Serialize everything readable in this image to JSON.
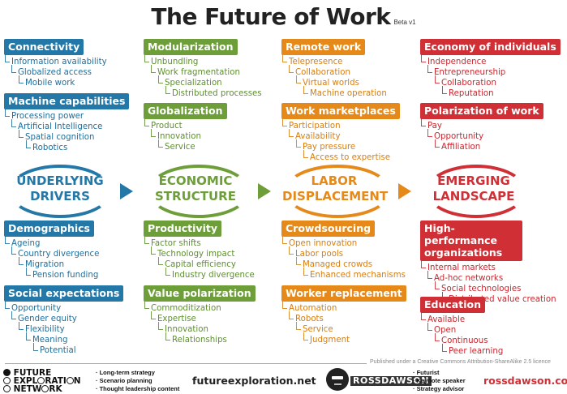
{
  "title": "The Future of Work",
  "version": "Beta v1",
  "colors": {
    "blue": "#2378a8",
    "green": "#6d9e3a",
    "orange": "#e58a1a",
    "red": "#cf2f35"
  },
  "columns": [
    {
      "category": [
        "UNDERLYING",
        "DRIVERS"
      ],
      "top": [
        {
          "header": "Connectivity",
          "items": [
            "Information availability",
            "Globalized access",
            "Mobile work"
          ]
        },
        {
          "header": "Machine capabilities",
          "items": [
            "Processing power",
            "Artificial Intelligence",
            "Spatial cognition",
            "Robotics"
          ]
        }
      ],
      "bottom": [
        {
          "header": "Demographics",
          "items": [
            "Ageing",
            "Country divergence",
            "Migration",
            "Pension funding"
          ]
        },
        {
          "header": "Social expectations",
          "items": [
            "Opportunity",
            "Gender equity",
            "Flexibility",
            "Meaning",
            "Potential"
          ]
        }
      ]
    },
    {
      "category": [
        "ECONOMIC",
        "STRUCTURE"
      ],
      "top": [
        {
          "header": "Modularization",
          "items": [
            "Unbundling",
            "Work fragmentation",
            "Specialization",
            "Distributed processes"
          ]
        },
        {
          "header": "Globalization",
          "items": [
            "Product",
            "Innovation",
            "Service"
          ]
        }
      ],
      "bottom": [
        {
          "header": "Productivity",
          "items": [
            "Factor shifts",
            "Technology impact",
            "Capital efficiency",
            "Industry divergence"
          ]
        },
        {
          "header": "Value polarization",
          "items": [
            "Commoditization",
            "Expertise",
            "Innovation",
            "Relationships"
          ]
        }
      ]
    },
    {
      "category": [
        "LABOR",
        "DISPLACEMENT"
      ],
      "top": [
        {
          "header": "Remote work",
          "items": [
            "Telepresence",
            "Collaboration",
            "Virtual worlds",
            "Machine operation"
          ]
        },
        {
          "header": "Work marketplaces",
          "items": [
            "Participation",
            "Availability",
            "Pay pressure",
            "Access to expertise"
          ]
        }
      ],
      "bottom": [
        {
          "header": "Crowdsourcing",
          "items": [
            "Open innovation",
            "Labor pools",
            "Managed crowds",
            "Enhanced mechanisms"
          ]
        },
        {
          "header": "Worker replacement",
          "items": [
            "Automation",
            "Robots",
            "Service",
            "Judgment"
          ]
        }
      ]
    },
    {
      "category": [
        "EMERGING",
        "LANDSCAPE"
      ],
      "top": [
        {
          "header": "Economy of individuals",
          "items": [
            "Independence",
            "Entrepreneurship",
            "Collaboration",
            "Reputation"
          ]
        },
        {
          "header": "Polarization of work",
          "items": [
            "Pay",
            "Opportunity",
            "Affiliation"
          ]
        }
      ],
      "bottom": [
        {
          "header": "High-performance organizations",
          "items": [
            "Internal markets",
            "Ad-hoc networks",
            "Social technologies",
            "Distributed value creation"
          ]
        },
        {
          "header": "Education",
          "items": [
            "Available",
            "Open",
            "Continuous",
            "Peer learning"
          ]
        }
      ]
    }
  ],
  "footer": {
    "license": "Published under a Creative Commons Attribution-ShareAlike 2.5 licence",
    "fe_logo": [
      "FUTURE",
      "EXPL",
      "RATI",
      "N",
      "NETW",
      "RK"
    ],
    "fe_bullets": [
      "· Long-term strategy",
      "· Scenario planning",
      "· Thought leadership content"
    ],
    "fe_site": "futureexploration.net",
    "rd_name": "ROSSDAWSON",
    "rd_bullets": [
      "· Futurist",
      "· Keynote speaker",
      "· Strategy advisor"
    ],
    "rd_site": "rossdawson.com"
  }
}
